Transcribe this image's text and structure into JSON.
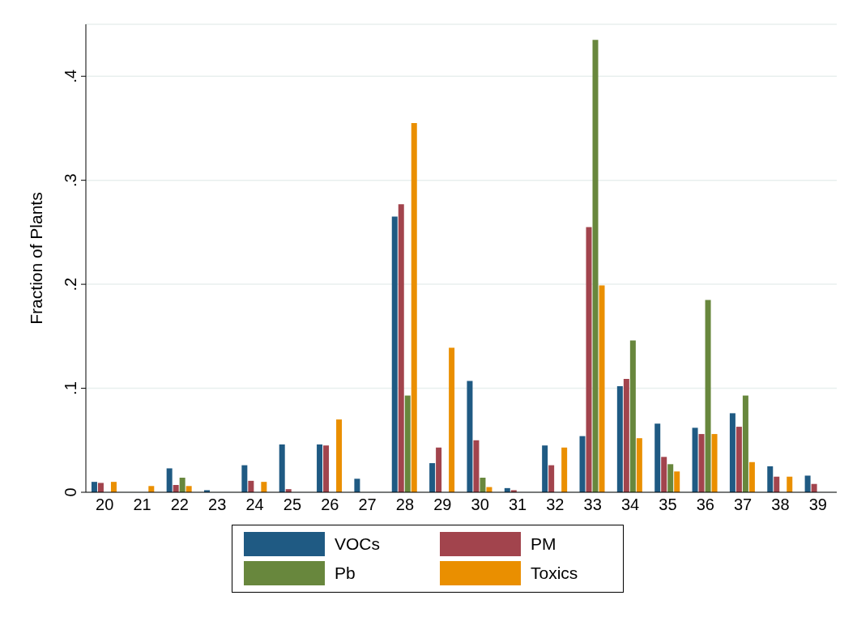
{
  "chart_data": {
    "type": "bar",
    "ylabel": "Fraction of Plants",
    "categories": [
      "20",
      "21",
      "22",
      "23",
      "24",
      "25",
      "26",
      "27",
      "28",
      "29",
      "30",
      "31",
      "32",
      "33",
      "34",
      "35",
      "36",
      "37",
      "38",
      "39"
    ],
    "series": [
      {
        "name": "VOCs",
        "color": "#1f5a83",
        "values": [
          0.01,
          0,
          0.023,
          0.002,
          0.026,
          0.046,
          0.046,
          0.013,
          0.265,
          0.028,
          0.107,
          0.004,
          0.045,
          0.054,
          0.102,
          0.066,
          0.062,
          0.076,
          0.025,
          0.016
        ]
      },
      {
        "name": "PM",
        "color": "#a2444d",
        "values": [
          0.009,
          0,
          0.007,
          0,
          0.011,
          0.003,
          0.045,
          0,
          0.277,
          0.043,
          0.05,
          0.002,
          0.026,
          0.255,
          0.109,
          0.034,
          0.056,
          0.063,
          0.015,
          0.008
        ]
      },
      {
        "name": "Pb",
        "color": "#68873d",
        "values": [
          0,
          0,
          0.014,
          0,
          0,
          0,
          0,
          0,
          0.093,
          0,
          0.014,
          0,
          0,
          0.435,
          0.146,
          0.027,
          0.185,
          0.093,
          0,
          0
        ]
      },
      {
        "name": "Toxics",
        "color": "#ea8f00",
        "values": [
          0.01,
          0.006,
          0.006,
          0,
          0.01,
          0,
          0.07,
          0,
          0.355,
          0.139,
          0.005,
          0,
          0.043,
          0.199,
          0.052,
          0.02,
          0.056,
          0.029,
          0.015,
          0
        ]
      }
    ],
    "ylim": [
      0,
      0.45
    ],
    "yticks": [
      {
        "value": 0,
        "label": "0"
      },
      {
        "value": 0.1,
        "label": ".1"
      },
      {
        "value": 0.2,
        "label": ".2"
      },
      {
        "value": 0.3,
        "label": ".3"
      },
      {
        "value": 0.4,
        "label": ".4"
      }
    ],
    "grid": "y",
    "legend": "bottom"
  }
}
